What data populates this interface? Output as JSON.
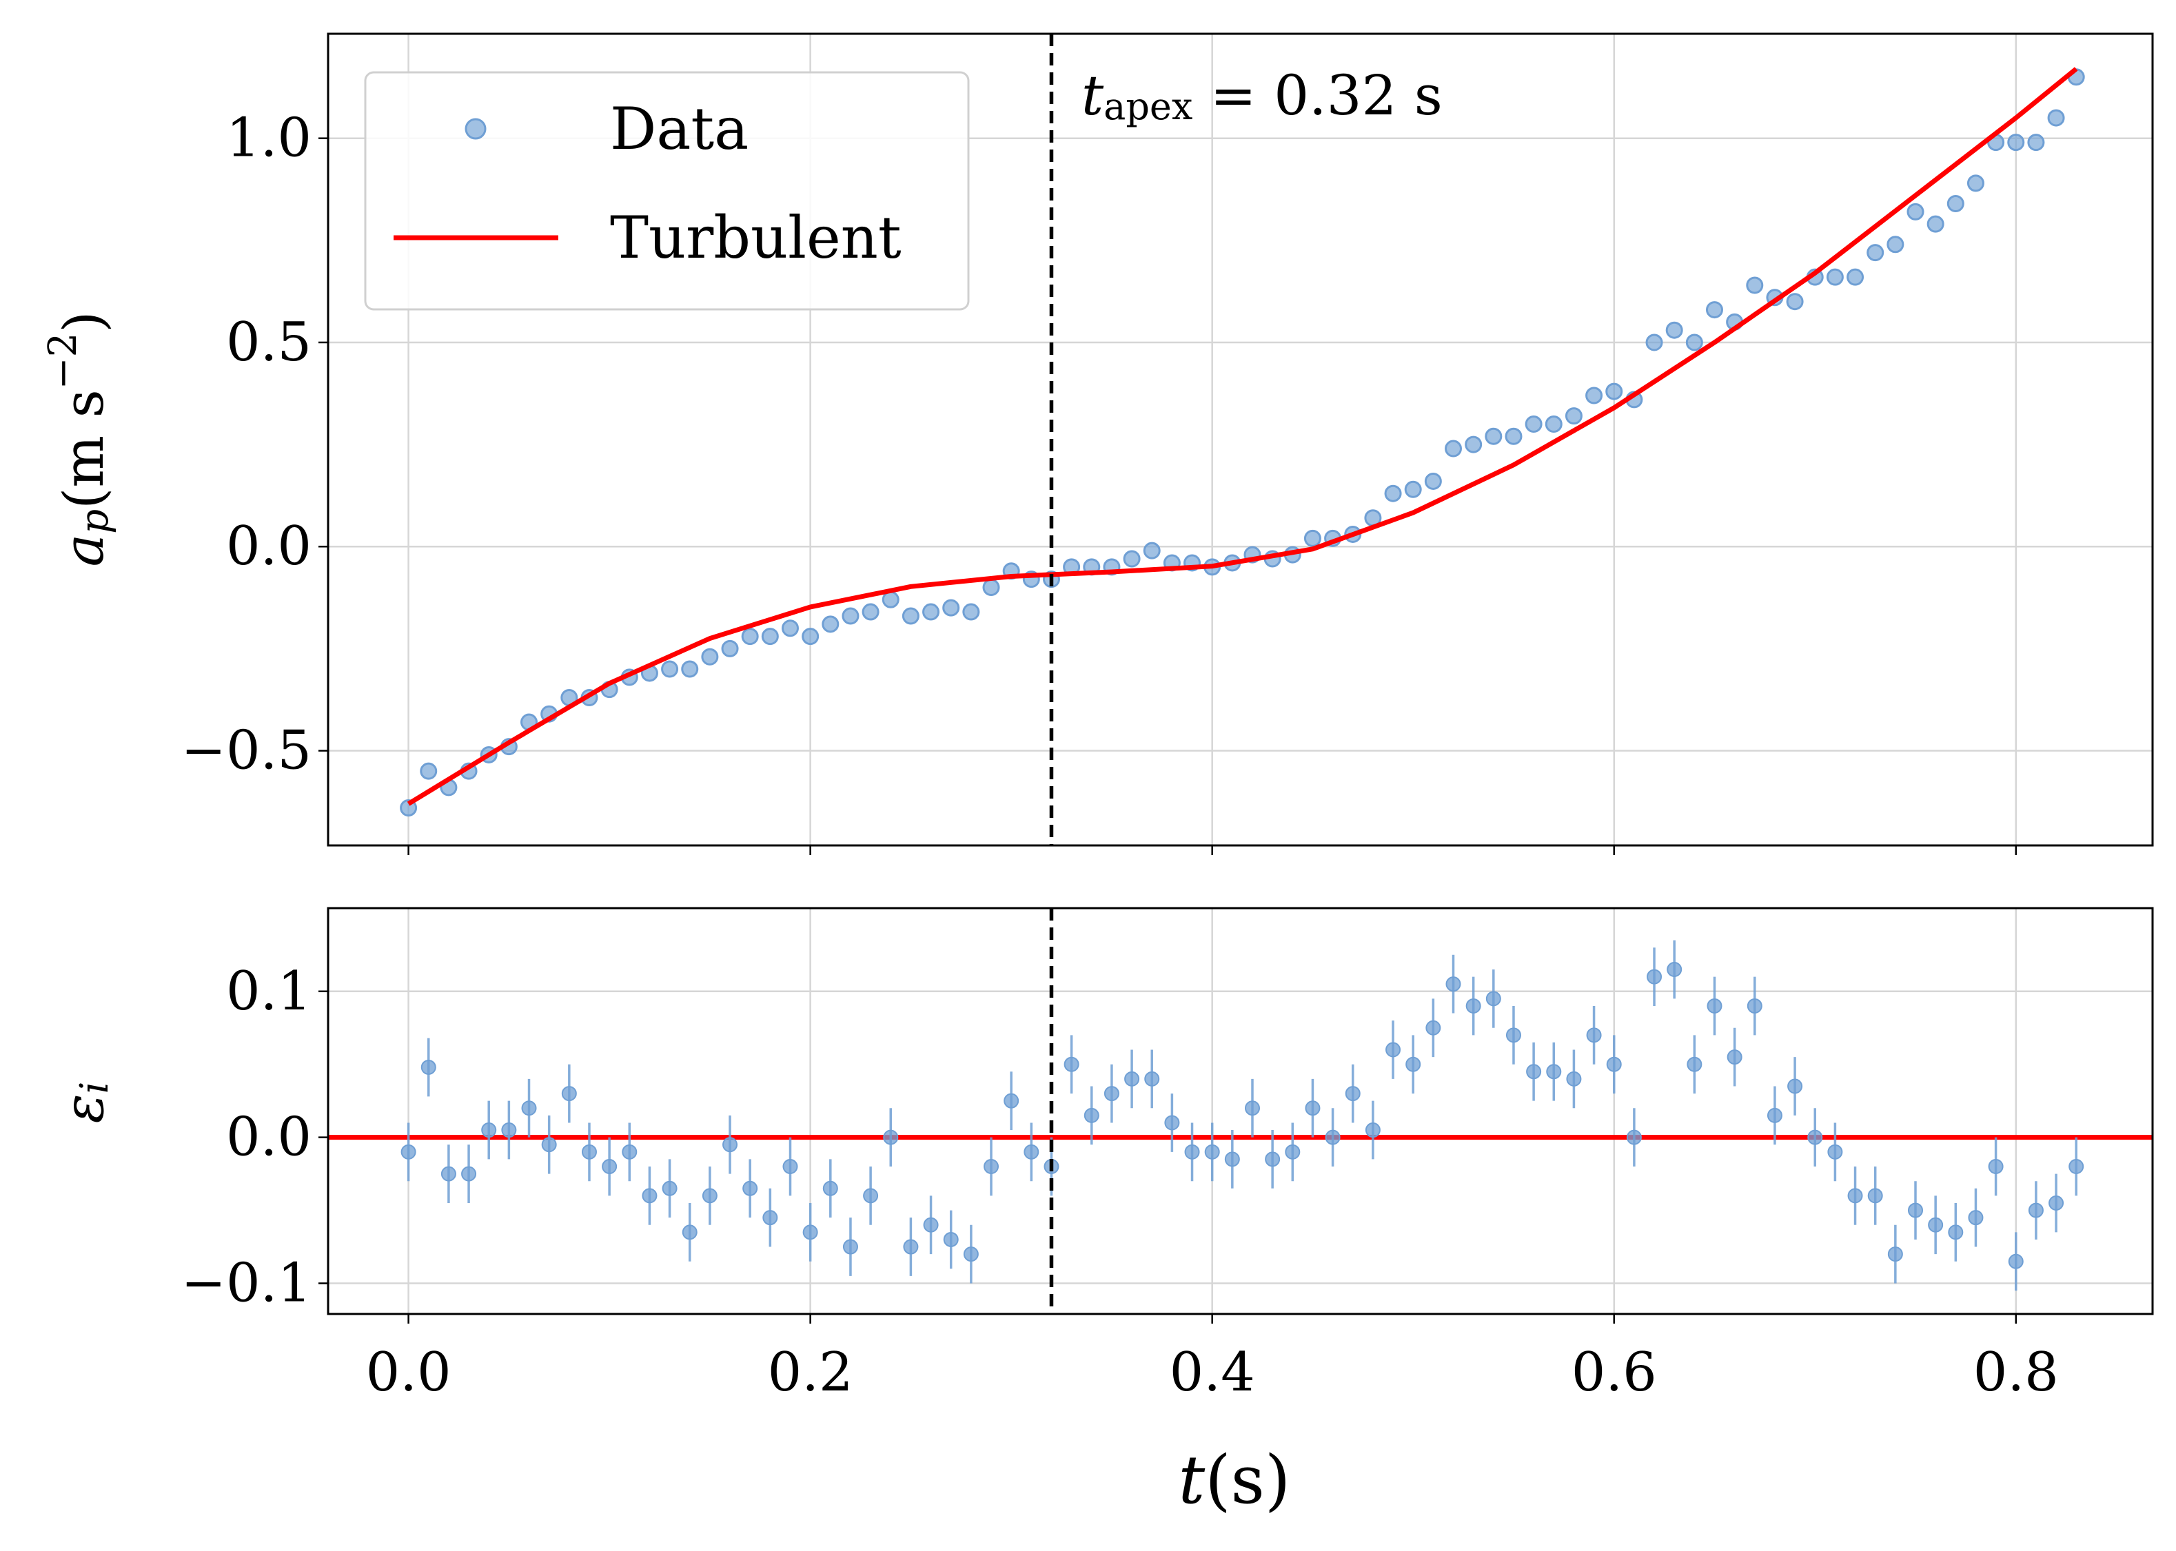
{
  "chart_data": [
    {
      "type": "scatter",
      "ylabel": {
        "base": "a",
        "sub": "p",
        "unit": "(m s",
        "sup": "−2",
        "close": ")"
      },
      "annotation": {
        "symbol": "t",
        "sub": "apex",
        "text": " = 0.32 s"
      },
      "vline": {
        "value": 0.32,
        "color": "#000000",
        "dashed": true
      },
      "xlim": [
        -0.04,
        0.868
      ],
      "ylim": [
        -0.732,
        1.256
      ],
      "xticks": [
        0,
        0.2,
        0.4,
        0.6,
        0.8
      ],
      "xtick_labels": false,
      "yticks": [
        {
          "value": -0.5,
          "label": "−0.5"
        },
        {
          "value": 0,
          "label": "0.0"
        },
        0.5,
        {
          "value": 1.0,
          "label": "1.0"
        }
      ],
      "grid": true,
      "legend": "upper left",
      "series": [
        {
          "name": "Data",
          "type": "scatter",
          "color": "#6f9fd4",
          "x": [
            0,
            0.01,
            0.02,
            0.03,
            0.04,
            0.05,
            0.06,
            0.07,
            0.08,
            0.09,
            0.1,
            0.11,
            0.12,
            0.13,
            0.14,
            0.15,
            0.16,
            0.17,
            0.18,
            0.19,
            0.2,
            0.21,
            0.22,
            0.23,
            0.24,
            0.25,
            0.26,
            0.27,
            0.28,
            0.29,
            0.3,
            0.31,
            0.32,
            0.33,
            0.34,
            0.35,
            0.36,
            0.37,
            0.38,
            0.39,
            0.4,
            0.41,
            0.42,
            0.43,
            0.44,
            0.45,
            0.46,
            0.47,
            0.48,
            0.49,
            0.5,
            0.51,
            0.52,
            0.53,
            0.54,
            0.55,
            0.56,
            0.57,
            0.58,
            0.59,
            0.6,
            0.61,
            0.62,
            0.63,
            0.64,
            0.65,
            0.66,
            0.67,
            0.68,
            0.69,
            0.7,
            0.71,
            0.72,
            0.73,
            0.74,
            0.75,
            0.76,
            0.77,
            0.78,
            0.79,
            0.8,
            0.81,
            0.82,
            0.83
          ],
          "values": [
            -0.64,
            -0.55,
            -0.59,
            -0.55,
            -0.51,
            -0.49,
            -0.43,
            -0.41,
            -0.37,
            -0.37,
            -0.35,
            -0.32,
            -0.31,
            -0.3,
            -0.3,
            -0.27,
            -0.25,
            -0.22,
            -0.22,
            -0.2,
            -0.22,
            -0.19,
            -0.17,
            -0.16,
            -0.13,
            -0.17,
            -0.16,
            -0.15,
            -0.16,
            -0.1,
            -0.06,
            -0.08,
            -0.08,
            -0.05,
            -0.05,
            -0.05,
            -0.03,
            -0.01,
            -0.04,
            -0.04,
            -0.05,
            -0.04,
            -0.02,
            -0.03,
            -0.02,
            0.02,
            0.02,
            0.03,
            0.07,
            0.13,
            0.14,
            0.16,
            0.24,
            0.25,
            0.27,
            0.27,
            0.3,
            0.3,
            0.32,
            0.37,
            0.38,
            0.36,
            0.5,
            0.53,
            0.5,
            0.58,
            0.55,
            0.64,
            0.61,
            0.6,
            0.66,
            0.66,
            0.66,
            0.72,
            0.74,
            0.82,
            0.79,
            0.84,
            0.89,
            0.99,
            0.99,
            0.99,
            1.05,
            1.15
          ]
        },
        {
          "name": "Turbulent",
          "type": "line",
          "color": "#ff0000",
          "x": [
            0,
            0.05,
            0.1,
            0.15,
            0.2,
            0.25,
            0.3,
            0.35,
            0.4,
            0.45,
            0.5,
            0.55,
            0.6,
            0.65,
            0.7,
            0.75,
            0.8,
            0.83
          ],
          "values": [
            -0.63,
            -0.48,
            -0.335,
            -0.225,
            -0.148,
            -0.098,
            -0.073,
            -0.062,
            -0.048,
            -0.006,
            0.083,
            0.2,
            0.34,
            0.5,
            0.67,
            0.86,
            1.05,
            1.17
          ]
        }
      ]
    },
    {
      "type": "errorbar",
      "xlabel": {
        "base": "t",
        "unit": "(s)"
      },
      "ylabel": {
        "base": "ε",
        "sub": "i"
      },
      "vline": {
        "value": 0.32,
        "color": "#000000",
        "dashed": true
      },
      "hline": {
        "value": 0,
        "color": "#ff0000"
      },
      "xlim": [
        -0.04,
        0.868
      ],
      "ylim": [
        -0.121,
        0.157
      ],
      "xticks": [
        {
          "value": 0,
          "label": "0.0"
        },
        0.2,
        0.4,
        0.6,
        0.8
      ],
      "xtick_labels": true,
      "yticks": [
        {
          "value": -0.1,
          "label": "−0.1"
        },
        {
          "value": 0,
          "label": "0.0"
        },
        0.1
      ],
      "grid": true,
      "series": [
        {
          "type": "errorbar",
          "color": "#6f9fd4",
          "error": 0.02,
          "x": [
            0,
            0.01,
            0.02,
            0.03,
            0.04,
            0.05,
            0.06,
            0.07,
            0.08,
            0.09,
            0.1,
            0.11,
            0.12,
            0.13,
            0.14,
            0.15,
            0.16,
            0.17,
            0.18,
            0.19,
            0.2,
            0.21,
            0.22,
            0.23,
            0.24,
            0.25,
            0.26,
            0.27,
            0.28,
            0.29,
            0.3,
            0.31,
            0.32,
            0.33,
            0.34,
            0.35,
            0.36,
            0.37,
            0.38,
            0.39,
            0.4,
            0.41,
            0.42,
            0.43,
            0.44,
            0.45,
            0.46,
            0.47,
            0.48,
            0.49,
            0.5,
            0.51,
            0.52,
            0.53,
            0.54,
            0.55,
            0.56,
            0.57,
            0.58,
            0.59,
            0.6,
            0.61,
            0.62,
            0.63,
            0.64,
            0.65,
            0.66,
            0.67,
            0.68,
            0.69,
            0.7,
            0.71,
            0.72,
            0.73,
            0.74,
            0.75,
            0.76,
            0.77,
            0.78,
            0.79,
            0.8,
            0.81,
            0.82,
            0.83
          ],
          "values": [
            -0.01,
            0.048,
            -0.025,
            -0.025,
            0.005,
            0.005,
            0.02,
            -0.005,
            0.03,
            -0.01,
            -0.02,
            -0.01,
            -0.04,
            -0.035,
            -0.065,
            -0.04,
            -0.005,
            -0.035,
            -0.055,
            -0.02,
            -0.065,
            -0.035,
            -0.075,
            -0.04,
            0,
            -0.075,
            -0.06,
            -0.07,
            -0.08,
            -0.02,
            0.025,
            -0.01,
            -0.02,
            0.05,
            0.015,
            0.03,
            0.04,
            0.04,
            0.01,
            -0.01,
            -0.01,
            -0.015,
            0.02,
            -0.015,
            -0.01,
            0.02,
            0,
            0.03,
            0.005,
            0.06,
            0.05,
            0.075,
            0.105,
            0.09,
            0.095,
            0.07,
            0.045,
            0.045,
            0.04,
            0.07,
            0.05,
            0,
            0.11,
            0.115,
            0.05,
            0.09,
            0.055,
            0.09,
            0.015,
            0.035,
            0,
            -0.01,
            -0.04,
            -0.04,
            -0.08,
            -0.05,
            -0.06,
            -0.065,
            -0.055,
            -0.02,
            -0.085,
            -0.05,
            -0.045,
            -0.02
          ]
        }
      ]
    }
  ]
}
